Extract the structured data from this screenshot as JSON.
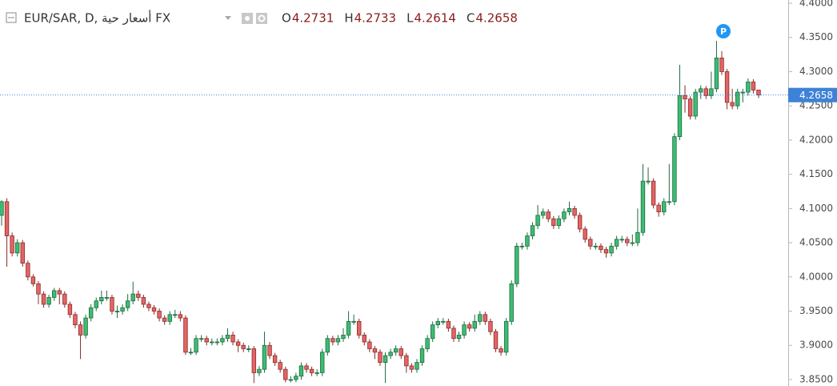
{
  "chart_data": {
    "type": "candlestick",
    "title": "EUR/SAR, D, أسعار حية FX",
    "ohlc_labels": [
      "O",
      "H",
      "L",
      "C"
    ],
    "marker": "P",
    "up_color": "#3dbc73",
    "up_border": "#1f6b3e",
    "down_color": "#e36565",
    "down_border": "#8b2a2a",
    "last_color": "#3d82d6",
    "ylim": [
      3.8406,
      4.4047
    ],
    "yticks": [
      {
        "value": 4.4,
        "label": "4.4000"
      },
      {
        "value": 4.35,
        "label": "4.3500"
      },
      {
        "value": 4.3,
        "label": "4.3000"
      },
      {
        "value": 4.25,
        "label": "4.2500"
      },
      {
        "value": 4.2,
        "label": "4.2000"
      },
      {
        "value": 4.15,
        "label": "4.1500"
      },
      {
        "value": 4.1,
        "label": "4.1000"
      },
      {
        "value": 4.05,
        "label": "4.0500"
      },
      {
        "value": 4.0,
        "label": "4.0000"
      },
      {
        "value": 3.95,
        "label": "3.9500"
      },
      {
        "value": 3.9,
        "label": "3.9000"
      },
      {
        "value": 3.85,
        "label": "3.8500"
      }
    ],
    "open": [
      4.09,
      4.11,
      4.06,
      4.035,
      4.05,
      4.02,
      4.0,
      3.99,
      3.975,
      3.96,
      3.97,
      3.98,
      3.975,
      3.96,
      3.945,
      3.93,
      3.915,
      3.94,
      3.955,
      3.965,
      3.97,
      3.97,
      3.95,
      3.95,
      3.955,
      3.965,
      3.975,
      3.97,
      3.96,
      3.955,
      3.95,
      3.94,
      3.935,
      3.945,
      3.945,
      3.94,
      3.89,
      3.89,
      3.91,
      3.91,
      3.905,
      3.905,
      3.905,
      3.91,
      3.915,
      3.905,
      3.9,
      3.895,
      3.895,
      3.86,
      3.865,
      3.9,
      3.885,
      3.875,
      3.865,
      3.85,
      3.85,
      3.855,
      3.87,
      3.865,
      3.86,
      3.86,
      3.89,
      3.91,
      3.905,
      3.91,
      3.915,
      3.935,
      3.935,
      3.915,
      3.905,
      3.895,
      3.89,
      3.875,
      3.885,
      3.89,
      3.895,
      3.885,
      3.87,
      3.865,
      3.875,
      3.895,
      3.91,
      3.93,
      3.935,
      3.935,
      3.925,
      3.91,
      3.915,
      3.93,
      3.925,
      3.935,
      3.945,
      3.935,
      3.92,
      3.895,
      3.89,
      3.935,
      3.99,
      4.045,
      4.045,
      4.06,
      4.075,
      4.09,
      4.095,
      4.085,
      4.075,
      4.085,
      4.095,
      4.1,
      4.09,
      4.07,
      4.055,
      4.045,
      4.045,
      4.04,
      4.035,
      4.045,
      4.055,
      4.055,
      4.05,
      4.05,
      4.065,
      4.14,
      4.14,
      4.105,
      4.095,
      4.11,
      4.11,
      4.205,
      4.265,
      4.26,
      4.235,
      4.27,
      4.275,
      4.265,
      4.275,
      4.32,
      4.3,
      4.255,
      4.25,
      4.27,
      4.27,
      4.285,
      4.2731
    ],
    "high": [
      4.112,
      4.115,
      4.065,
      4.055,
      4.054,
      4.024,
      4.004,
      3.994,
      3.979,
      3.974,
      3.984,
      3.984,
      3.979,
      3.964,
      3.949,
      3.935,
      3.945,
      3.96,
      3.97,
      3.98,
      3.98,
      3.974,
      3.958,
      3.96,
      3.975,
      3.993,
      3.98,
      3.974,
      3.964,
      3.959,
      3.954,
      3.944,
      3.95,
      3.952,
      3.95,
      3.944,
      3.896,
      3.915,
      3.915,
      3.914,
      3.91,
      3.91,
      3.915,
      3.925,
      3.92,
      3.909,
      3.904,
      3.9,
      3.899,
      3.87,
      3.92,
      3.905,
      3.889,
      3.879,
      3.869,
      3.855,
      3.86,
      3.875,
      3.874,
      3.869,
      3.865,
      3.895,
      3.915,
      3.914,
      3.915,
      3.925,
      3.95,
      3.945,
      3.939,
      3.919,
      3.909,
      3.899,
      3.894,
      3.89,
      3.895,
      3.9,
      3.899,
      3.889,
      3.874,
      3.88,
      3.9,
      3.915,
      3.935,
      3.94,
      3.94,
      3.939,
      3.929,
      3.92,
      3.935,
      3.934,
      3.945,
      3.95,
      3.949,
      3.939,
      3.924,
      3.899,
      3.94,
      3.995,
      4.05,
      4.05,
      4.065,
      4.08,
      4.105,
      4.1,
      4.099,
      4.089,
      4.09,
      4.1,
      4.11,
      4.104,
      4.094,
      4.074,
      4.059,
      4.05,
      4.049,
      4.044,
      4.05,
      4.06,
      4.06,
      4.059,
      4.062,
      4.1,
      4.165,
      4.16,
      4.144,
      4.109,
      4.115,
      4.165,
      4.21,
      4.31,
      4.28,
      4.264,
      4.275,
      4.28,
      4.279,
      4.3,
      4.345,
      4.33,
      4.304,
      4.275,
      4.275,
      4.275,
      4.29,
      4.289,
      4.2733
    ],
    "low": [
      4.075,
      4.015,
      4.03,
      4.03,
      4.015,
      3.995,
      3.986,
      3.96,
      3.955,
      3.955,
      3.965,
      3.96,
      3.955,
      3.94,
      3.925,
      3.88,
      3.91,
      3.935,
      3.95,
      3.96,
      3.965,
      3.945,
      3.94,
      3.945,
      3.95,
      3.96,
      3.965,
      3.955,
      3.95,
      3.945,
      3.935,
      3.93,
      3.93,
      3.94,
      3.935,
      3.886,
      3.886,
      3.886,
      3.905,
      3.9,
      3.9,
      3.9,
      3.9,
      3.905,
      3.9,
      3.89,
      3.89,
      3.89,
      3.845,
      3.855,
      3.86,
      3.88,
      3.87,
      3.86,
      3.846,
      3.846,
      3.846,
      3.85,
      3.86,
      3.855,
      3.855,
      3.855,
      3.885,
      3.9,
      3.9,
      3.905,
      3.91,
      3.93,
      3.91,
      3.9,
      3.89,
      3.88,
      3.87,
      3.845,
      3.88,
      3.885,
      3.88,
      3.86,
      3.86,
      3.86,
      3.87,
      3.89,
      3.905,
      3.925,
      3.93,
      3.92,
      3.905,
      3.905,
      3.91,
      3.92,
      3.92,
      3.93,
      3.93,
      3.915,
      3.89,
      3.885,
      3.885,
      3.93,
      3.985,
      4.04,
      4.04,
      4.055,
      4.07,
      4.085,
      4.08,
      4.07,
      4.07,
      4.08,
      4.09,
      4.085,
      4.065,
      4.05,
      4.04,
      4.04,
      4.035,
      4.028,
      4.03,
      4.04,
      4.05,
      4.045,
      4.045,
      4.045,
      4.06,
      4.135,
      4.1,
      4.088,
      4.09,
      4.105,
      4.105,
      4.2,
      4.24,
      4.23,
      4.23,
      4.26,
      4.26,
      4.26,
      4.27,
      4.295,
      4.245,
      4.245,
      4.245,
      4.255,
      4.265,
      4.268,
      4.2614
    ],
    "close": [
      4.11,
      4.06,
      4.035,
      4.05,
      4.02,
      4.0,
      3.99,
      3.975,
      3.96,
      3.97,
      3.98,
      3.975,
      3.96,
      3.945,
      3.93,
      3.915,
      3.94,
      3.955,
      3.965,
      3.97,
      3.97,
      3.95,
      3.95,
      3.955,
      3.965,
      3.975,
      3.97,
      3.96,
      3.955,
      3.95,
      3.94,
      3.935,
      3.945,
      3.945,
      3.94,
      3.89,
      3.89,
      3.91,
      3.91,
      3.905,
      3.905,
      3.905,
      3.91,
      3.915,
      3.905,
      3.9,
      3.895,
      3.895,
      3.86,
      3.865,
      3.9,
      3.885,
      3.875,
      3.865,
      3.85,
      3.85,
      3.855,
      3.87,
      3.865,
      3.86,
      3.86,
      3.89,
      3.91,
      3.905,
      3.91,
      3.915,
      3.935,
      3.935,
      3.915,
      3.905,
      3.895,
      3.89,
      3.875,
      3.885,
      3.89,
      3.895,
      3.885,
      3.87,
      3.865,
      3.875,
      3.895,
      3.91,
      3.93,
      3.935,
      3.935,
      3.925,
      3.91,
      3.915,
      3.93,
      3.925,
      3.935,
      3.945,
      3.935,
      3.92,
      3.895,
      3.89,
      3.935,
      3.99,
      4.045,
      4.045,
      4.06,
      4.075,
      4.09,
      4.095,
      4.085,
      4.075,
      4.085,
      4.095,
      4.1,
      4.09,
      4.07,
      4.055,
      4.045,
      4.045,
      4.04,
      4.035,
      4.045,
      4.055,
      4.055,
      4.05,
      4.05,
      4.065,
      4.14,
      4.14,
      4.105,
      4.095,
      4.11,
      4.11,
      4.205,
      4.265,
      4.26,
      4.235,
      4.27,
      4.275,
      4.265,
      4.275,
      4.32,
      4.3,
      4.255,
      4.25,
      4.27,
      4.27,
      4.285,
      4.2731,
      4.2658
    ]
  }
}
